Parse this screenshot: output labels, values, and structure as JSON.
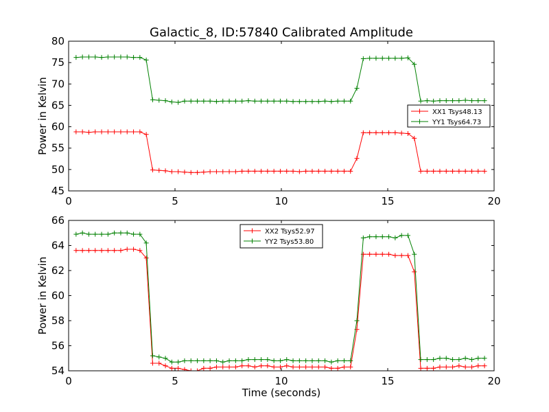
{
  "title": "Galactic_8, ID:57840 Calibrated Amplitude",
  "colors": {
    "xx": "#ff0000",
    "yy": "#008000"
  },
  "chart_data": [
    {
      "type": "line",
      "xlabel": "",
      "ylabel": "Power in Kelvin",
      "xlim": [
        0,
        20
      ],
      "ylim": [
        45,
        80
      ],
      "xticks": [
        0,
        5,
        10,
        15,
        20
      ],
      "yticks": [
        45,
        50,
        55,
        60,
        65,
        70,
        75,
        80
      ],
      "grid": false,
      "legend": "center-right",
      "x": [
        0.35,
        0.65,
        0.95,
        1.25,
        1.55,
        1.85,
        2.15,
        2.45,
        2.75,
        3.05,
        3.35,
        3.65,
        3.95,
        4.25,
        4.55,
        4.85,
        5.15,
        5.45,
        5.75,
        6.05,
        6.35,
        6.65,
        6.95,
        7.25,
        7.55,
        7.85,
        8.15,
        8.45,
        8.75,
        9.05,
        9.35,
        9.65,
        9.95,
        10.25,
        10.55,
        10.85,
        11.15,
        11.45,
        11.75,
        12.05,
        12.35,
        12.65,
        12.95,
        13.25,
        13.55,
        13.85,
        14.15,
        14.45,
        14.75,
        15.05,
        15.35,
        15.65,
        15.95,
        16.25,
        16.55,
        16.85,
        17.15,
        17.45,
        17.75,
        18.05,
        18.35,
        18.65,
        18.95,
        19.25,
        19.55
      ],
      "series": [
        {
          "name": "XX1 Tsys48.13",
          "color": "#ff0000",
          "values": [
            58.8,
            58.8,
            58.7,
            58.8,
            58.8,
            58.8,
            58.8,
            58.8,
            58.8,
            58.8,
            58.8,
            58.2,
            49.9,
            49.8,
            49.7,
            49.5,
            49.5,
            49.4,
            49.3,
            49.3,
            49.4,
            49.5,
            49.5,
            49.5,
            49.5,
            49.5,
            49.6,
            49.6,
            49.6,
            49.6,
            49.6,
            49.6,
            49.6,
            49.6,
            49.6,
            49.5,
            49.6,
            49.6,
            49.6,
            49.6,
            49.6,
            49.6,
            49.6,
            49.6,
            52.6,
            58.6,
            58.6,
            58.6,
            58.6,
            58.6,
            58.6,
            58.5,
            58.4,
            57.3,
            49.6,
            49.6,
            49.6,
            49.6,
            49.6,
            49.6,
            49.6,
            49.6,
            49.6,
            49.6,
            49.6
          ]
        },
        {
          "name": "YY1 Tsys64.73",
          "color": "#008000",
          "values": [
            76.2,
            76.3,
            76.3,
            76.3,
            76.2,
            76.3,
            76.3,
            76.3,
            76.3,
            76.2,
            76.2,
            75.6,
            66.3,
            66.2,
            66.1,
            65.8,
            65.7,
            66.0,
            66.0,
            66.0,
            66.0,
            66.0,
            65.9,
            66.0,
            66.0,
            66.0,
            66.0,
            66.1,
            66.0,
            66.0,
            66.0,
            66.0,
            66.0,
            66.0,
            65.9,
            65.9,
            65.9,
            65.9,
            65.9,
            66.0,
            65.9,
            66.0,
            66.0,
            66.0,
            69.0,
            75.9,
            76.0,
            76.0,
            76.0,
            76.0,
            76.0,
            76.0,
            76.1,
            74.6,
            66.0,
            66.1,
            66.0,
            66.1,
            66.1,
            66.1,
            66.1,
            66.2,
            66.1,
            66.1,
            66.1
          ]
        }
      ]
    },
    {
      "type": "line",
      "xlabel": "Time (seconds)",
      "ylabel": "Power in Kelvin",
      "xlim": [
        0,
        20
      ],
      "ylim": [
        54,
        66
      ],
      "xticks": [
        0,
        5,
        10,
        15,
        20
      ],
      "yticks": [
        54,
        56,
        58,
        60,
        62,
        64,
        66
      ],
      "grid": false,
      "legend": "upper-center",
      "x": [
        0.35,
        0.65,
        0.95,
        1.25,
        1.55,
        1.85,
        2.15,
        2.45,
        2.75,
        3.05,
        3.35,
        3.65,
        3.95,
        4.25,
        4.55,
        4.85,
        5.15,
        5.45,
        5.75,
        6.05,
        6.35,
        6.65,
        6.95,
        7.25,
        7.55,
        7.85,
        8.15,
        8.45,
        8.75,
        9.05,
        9.35,
        9.65,
        9.95,
        10.25,
        10.55,
        10.85,
        11.15,
        11.45,
        11.75,
        12.05,
        12.35,
        12.65,
        12.95,
        13.25,
        13.55,
        13.85,
        14.15,
        14.45,
        14.75,
        15.05,
        15.35,
        15.65,
        15.95,
        16.25,
        16.55,
        16.85,
        17.15,
        17.45,
        17.75,
        18.05,
        18.35,
        18.65,
        18.95,
        19.25,
        19.55
      ],
      "series": [
        {
          "name": "XX2 Tsys52.97",
          "color": "#ff0000",
          "values": [
            63.6,
            63.6,
            63.6,
            63.6,
            63.6,
            63.6,
            63.6,
            63.6,
            63.7,
            63.7,
            63.6,
            63.0,
            54.6,
            54.6,
            54.4,
            54.2,
            54.2,
            54.1,
            54.0,
            54.0,
            54.2,
            54.2,
            54.3,
            54.3,
            54.3,
            54.3,
            54.4,
            54.4,
            54.3,
            54.4,
            54.4,
            54.3,
            54.3,
            54.4,
            54.3,
            54.3,
            54.3,
            54.3,
            54.3,
            54.3,
            54.2,
            54.2,
            54.3,
            54.3,
            57.3,
            63.3,
            63.3,
            63.3,
            63.3,
            63.3,
            63.2,
            63.2,
            63.2,
            61.9,
            54.2,
            54.2,
            54.2,
            54.3,
            54.3,
            54.3,
            54.4,
            54.3,
            54.3,
            54.4,
            54.4
          ]
        },
        {
          "name": "YY2 Tsys53.80",
          "color": "#008000",
          "values": [
            64.9,
            65.0,
            64.9,
            64.9,
            64.9,
            64.9,
            65.0,
            65.0,
            65.0,
            64.9,
            64.9,
            64.2,
            55.2,
            55.1,
            55.0,
            54.7,
            54.7,
            54.8,
            54.8,
            54.8,
            54.8,
            54.8,
            54.8,
            54.7,
            54.8,
            54.8,
            54.8,
            54.9,
            54.9,
            54.9,
            54.9,
            54.8,
            54.8,
            54.9,
            54.8,
            54.8,
            54.8,
            54.8,
            54.8,
            54.8,
            54.7,
            54.8,
            54.8,
            54.8,
            58.0,
            64.6,
            64.7,
            64.7,
            64.7,
            64.7,
            64.6,
            64.8,
            64.8,
            63.3,
            54.9,
            54.9,
            54.9,
            55.0,
            55.0,
            54.9,
            54.9,
            55.0,
            54.9,
            55.0,
            55.0
          ]
        }
      ]
    }
  ]
}
